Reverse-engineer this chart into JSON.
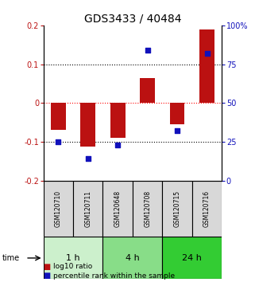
{
  "title": "GDS3433 / 40484",
  "samples": [
    "GSM120710",
    "GSM120711",
    "GSM120648",
    "GSM120708",
    "GSM120715",
    "GSM120716"
  ],
  "log10_ratio": [
    -0.07,
    -0.113,
    -0.09,
    0.065,
    -0.055,
    0.19
  ],
  "percentile_rank": [
    25,
    14,
    23,
    84,
    32,
    82
  ],
  "time_groups": [
    {
      "label": "1 h",
      "samples": [
        "GSM120710",
        "GSM120711"
      ],
      "color": "#ccf0cc"
    },
    {
      "label": "4 h",
      "samples": [
        "GSM120648",
        "GSM120708"
      ],
      "color": "#88dd88"
    },
    {
      "label": "24 h",
      "samples": [
        "GSM120715",
        "GSM120716"
      ],
      "color": "#33cc33"
    }
  ],
  "ylim_left": [
    -0.2,
    0.2
  ],
  "ylim_right": [
    0,
    100
  ],
  "bar_color": "#bb1111",
  "dot_color": "#1111bb",
  "bg_color": "#d8d8d8",
  "title_fontsize": 10,
  "tick_fontsize": 7,
  "label_fontsize": 8
}
